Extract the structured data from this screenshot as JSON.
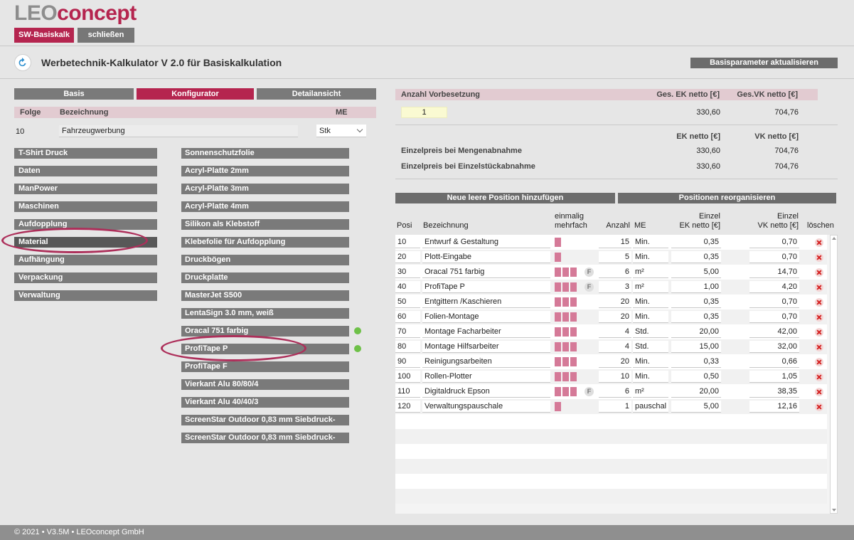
{
  "logo": {
    "part1": "LEO",
    "part2": "concept"
  },
  "topbar": {
    "calc_label": "SW-Basiskalk",
    "close_label": "schließen"
  },
  "header": {
    "title": "Werbetechnik-Kalkulator V 2.0 für Basiskalkulation",
    "update_button": "Basisparameter aktualisieren"
  },
  "tabs": [
    {
      "label": "Basis"
    },
    {
      "label": "Konfigurator"
    },
    {
      "label": "Detailansicht"
    }
  ],
  "config": {
    "col_folge": "Folge",
    "col_bezeichnung": "Bezeichnung",
    "col_me": "ME",
    "folge": "10",
    "bezeichnung": "Fahrzeugwerbung",
    "me": "Stk"
  },
  "categories": [
    {
      "label": "T-Shirt Druck"
    },
    {
      "label": "Daten"
    },
    {
      "label": "ManPower"
    },
    {
      "label": "Maschinen"
    },
    {
      "label": "Aufdopplung"
    },
    {
      "label": "Material"
    },
    {
      "label": "Aufhängung"
    },
    {
      "label": "Verpackung"
    },
    {
      "label": "Verwaltung"
    }
  ],
  "materials": [
    {
      "label": "Sonnenschutzfolie"
    },
    {
      "label": "Acryl-Platte 2mm"
    },
    {
      "label": "Acryl-Platte 3mm"
    },
    {
      "label": "Acryl-Platte 4mm"
    },
    {
      "label": "Silikon als Klebstoff"
    },
    {
      "label": "Klebefolie für Aufdopplung"
    },
    {
      "label": "Druckbögen"
    },
    {
      "label": "Druckplatte"
    },
    {
      "label": "MasterJet S500"
    },
    {
      "label": "LentaSign 3.0 mm, weiß"
    },
    {
      "label": "Oracal 751 farbig"
    },
    {
      "label": "ProfiTape P"
    },
    {
      "label": "ProfiTape F"
    },
    {
      "label": "Vierkant Alu 80/80/4"
    },
    {
      "label": "Vierkant Alu 40/40/3"
    },
    {
      "label": "ScreenStar Outdoor 0,83 mm Siebdruck-"
    },
    {
      "label": "ScreenStar Outdoor 0,83 mm Siebdruck-"
    }
  ],
  "summary": {
    "col_anzahl": "Anzahl Vorbesetzung",
    "col_ges_ek": "Ges. EK netto [€]",
    "col_ges_vk": "Ges.VK netto [€]",
    "anzahl": "1",
    "ges_ek": "330,60",
    "ges_vk": "704,76",
    "col_ek": "EK netto [€]",
    "col_vk": "VK netto [€]",
    "menge_label": "Einzelpreis bei Mengenabnahme",
    "menge_ek": "330,60",
    "menge_vk": "704,76",
    "einzel_label": "Einzelpreis bei Einzelstückabnahme",
    "einzel_ek": "330,60",
    "einzel_vk": "704,76"
  },
  "actions": {
    "add_position": "Neue leere Position hinzufügen",
    "reorganize": "Positionen reorganisieren"
  },
  "table": {
    "h_posi": "Posi",
    "h_bez": "Bezeichnung",
    "h_einmalig1": "einmalig",
    "h_einmalig2": "mehrfach",
    "h_anzahl": "Anzahl",
    "h_me": "ME",
    "h_ek1": "Einzel",
    "h_ek2": "EK netto [€]",
    "h_vk1": "Einzel",
    "h_vk2": "VK netto [€]",
    "h_del": "löschen",
    "rows": [
      {
        "posi": "10",
        "bez": "Entwurf & Gestaltung",
        "bars": 1,
        "f": false,
        "anzahl": "15",
        "me": "Min.",
        "ek": "0,35",
        "vk": "0,70"
      },
      {
        "posi": "20",
        "bez": "Plott-Eingabe",
        "bars": 1,
        "f": false,
        "anzahl": "5",
        "me": "Min.",
        "ek": "0,35",
        "vk": "0,70"
      },
      {
        "posi": "30",
        "bez": "Oracal 751 farbig",
        "bars": 3,
        "f": true,
        "anzahl": "6",
        "me": "m²",
        "ek": "5,00",
        "vk": "14,70"
      },
      {
        "posi": "40",
        "bez": "ProfiTape P",
        "bars": 3,
        "f": true,
        "anzahl": "3",
        "me": "m²",
        "ek": "1,00",
        "vk": "4,20"
      },
      {
        "posi": "50",
        "bez": "Entgittern /Kaschieren",
        "bars": 3,
        "f": false,
        "anzahl": "20",
        "me": "Min.",
        "ek": "0,35",
        "vk": "0,70"
      },
      {
        "posi": "60",
        "bez": "Folien-Montage",
        "bars": 3,
        "f": false,
        "anzahl": "20",
        "me": "Min.",
        "ek": "0,35",
        "vk": "0,70"
      },
      {
        "posi": "70",
        "bez": "Montage Facharbeiter",
        "bars": 3,
        "f": false,
        "anzahl": "4",
        "me": "Std.",
        "ek": "20,00",
        "vk": "42,00"
      },
      {
        "posi": "80",
        "bez": "Montage Hilfsarbeiter",
        "bars": 3,
        "f": false,
        "anzahl": "4",
        "me": "Std.",
        "ek": "15,00",
        "vk": "32,00"
      },
      {
        "posi": "90",
        "bez": "Reinigungsarbeiten",
        "bars": 3,
        "f": false,
        "anzahl": "20",
        "me": "Min.",
        "ek": "0,33",
        "vk": "0,66"
      },
      {
        "posi": "100",
        "bez": "Rollen-Plotter",
        "bars": 3,
        "f": false,
        "anzahl": "10",
        "me": "Min.",
        "ek": "0,50",
        "vk": "1,05"
      },
      {
        "posi": "110",
        "bez": "Digitaldruck Epson",
        "bars": 3,
        "f": true,
        "anzahl": "6",
        "me": "m²",
        "ek": "20,00",
        "vk": "38,35"
      },
      {
        "posi": "120",
        "bez": "Verwaltungspauschale",
        "bars": 1,
        "f": false,
        "anzahl": "1",
        "me": "pauschal",
        "ek": "5,00",
        "vk": "12,16"
      }
    ]
  },
  "footer": {
    "text": "© 2021 • V3.5M • LEOconcept GmbH"
  }
}
